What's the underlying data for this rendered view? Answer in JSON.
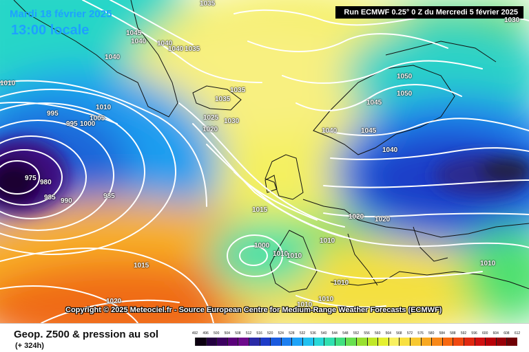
{
  "header": {
    "date": "Mardi 18 février 2025",
    "local_time": "13:00 locale",
    "run_info": "Run ECMWF 0.25° 0 Z du Mercredi 5 février 2025"
  },
  "copyright": "Copyright © 2025 Meteociel.fr - Source European Centre for Medium-Range Weather Forecasts (ECMWF)",
  "footer": {
    "field_name": "Geop. Z500 & pression au sol",
    "lead_time": "(+ 324h)"
  },
  "pressure_labels": [
    "1045",
    "1040",
    "1040",
    "1040",
    "1035",
    "1040",
    "1010",
    "995",
    "1010",
    "995",
    "1000",
    "1005",
    "975",
    "980",
    "985",
    "990",
    "985",
    "1035",
    "1035",
    "1025",
    "1030",
    "1020",
    "1050",
    "1050",
    "1045",
    "1040",
    "1045",
    "1040",
    "1020",
    "1020",
    "1015",
    "1000",
    "1010",
    "1010",
    "1010",
    "1015",
    "1020",
    "1010",
    "1010",
    "1010",
    "1010",
    "1035",
    "1030"
  ],
  "legend": {
    "ticks": [
      "492",
      "496",
      "500",
      "504",
      "508",
      "512",
      "516",
      "520",
      "524",
      "528",
      "532",
      "536",
      "540",
      "544",
      "548",
      "552",
      "556",
      "560",
      "564",
      "568",
      "572",
      "576",
      "580",
      "584",
      "588",
      "592",
      "596",
      "600",
      "604",
      "608",
      "612"
    ],
    "colors": [
      "#0c0010",
      "#240040",
      "#3c0060",
      "#5a007a",
      "#6e0a8c",
      "#2a2aa6",
      "#1e3cc8",
      "#1a5ade",
      "#1c7ff0",
      "#1ea3f8",
      "#20c0f0",
      "#28d8d8",
      "#30e0b0",
      "#40e080",
      "#68e050",
      "#98e030",
      "#c0e828",
      "#e4f030",
      "#f8f060",
      "#f8e040",
      "#f8c830",
      "#f8a820",
      "#f88818",
      "#f86810",
      "#f04810",
      "#e02810",
      "#d01010",
      "#b80008",
      "#980008",
      "#700004"
    ]
  },
  "colors": {
    "title_blue": "#1da1ff",
    "isobar": "#ffffff",
    "banner_bg": "#000000"
  }
}
